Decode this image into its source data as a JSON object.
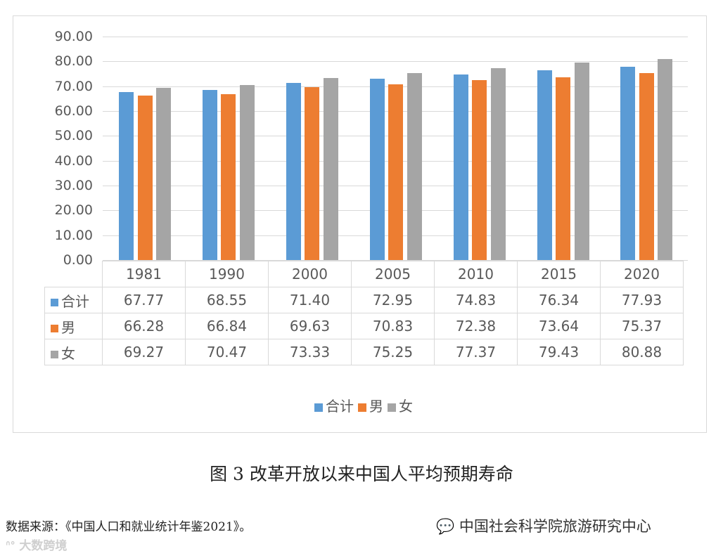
{
  "chart_data": {
    "type": "bar",
    "title": "图 3 改革开放以来中国人平均预期寿命",
    "xlabel": "",
    "ylabel": "",
    "ylim": [
      0,
      90
    ],
    "yticks": [
      "90.00",
      "80.00",
      "70.00",
      "60.00",
      "50.00",
      "40.00",
      "30.00",
      "20.00",
      "10.00",
      "0.00"
    ],
    "grid": true,
    "legend_position": "bottom",
    "categories": [
      "1981",
      "1990",
      "2000",
      "2005",
      "2010",
      "2015",
      "2020"
    ],
    "series": [
      {
        "name": "合计",
        "color": "#5b9bd5",
        "values": [
          67.77,
          68.55,
          71.4,
          72.95,
          74.83,
          76.34,
          77.93
        ],
        "labels": [
          "67.77",
          "68.55",
          "71.40",
          "72.95",
          "74.83",
          "76.34",
          "77.93"
        ]
      },
      {
        "name": "男",
        "color": "#ed7d31",
        "values": [
          66.28,
          66.84,
          69.63,
          70.83,
          72.38,
          73.64,
          75.37
        ],
        "labels": [
          "66.28",
          "66.84",
          "69.63",
          "70.83",
          "72.38",
          "73.64",
          "75.37"
        ]
      },
      {
        "name": "女",
        "color": "#a5a5a5",
        "values": [
          69.27,
          70.47,
          73.33,
          75.25,
          77.37,
          79.43,
          80.88
        ],
        "labels": [
          "69.27",
          "70.47",
          "73.33",
          "75.25",
          "77.37",
          "79.43",
          "80.88"
        ]
      }
    ]
  },
  "caption": "图 3 改革开放以来中国人平均预期寿命",
  "source": "数据来源：《中国人口和就业统计年鉴2021》。",
  "watermarks": {
    "wechat": "中国社会科学院旅游研究中心",
    "corner": "大数跨境"
  }
}
